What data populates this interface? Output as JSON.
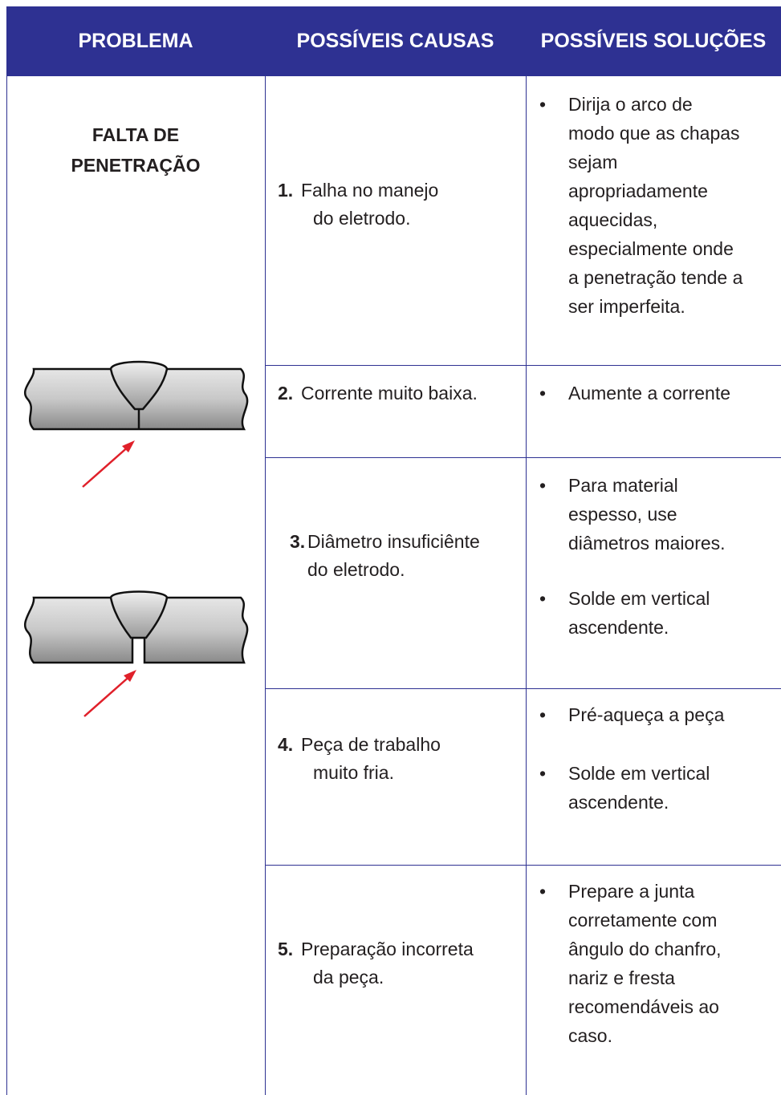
{
  "header": {
    "columns": [
      "PROBLEMA",
      "POSSÍVEIS CAUSAS",
      "POSSÍVEIS SOLUÇÕES"
    ]
  },
  "problem": {
    "lines": [
      "FALTA DE",
      "PENETRAÇÃO"
    ]
  },
  "rows": [
    {
      "number": "1.",
      "cause_lines": [
        "Falha no manejo",
        "do eletrodo."
      ],
      "solutions": [
        [
          "Dirija o arco de",
          "modo que as chapas",
          "sejam",
          "apropriadamente",
          "aquecidas,",
          "especialmente onde",
          "a penetração tende a",
          "ser imperfeita."
        ]
      ]
    },
    {
      "number": "2.",
      "cause_lines": [
        "Corrente muito baixa."
      ],
      "solutions": [
        [
          "Aumente a corrente"
        ]
      ]
    },
    {
      "number": "3.",
      "cause_lines": [
        "Diâmetro insuficiênte",
        "do eletrodo."
      ],
      "solutions": [
        [
          "Para material",
          "espesso, use",
          "diâmetros maiores."
        ],
        [
          "Solde em vertical",
          "ascendente."
        ]
      ]
    },
    {
      "number": "4.",
      "cause_lines": [
        "Peça de trabalho",
        "muito fria."
      ],
      "solutions": [
        [
          "Pré-aqueça a peça"
        ],
        [
          "Solde em vertical",
          "ascendente."
        ]
      ]
    },
    {
      "number": "5.",
      "cause_lines": [
        "Preparação incorreta",
        "da peça."
      ],
      "solutions": [
        [
          "Prepare a junta",
          "corretamente com",
          "ângulo do chanfro,",
          "nariz e fresta",
          "recomendáveis ao",
          "caso."
        ]
      ]
    }
  ]
}
